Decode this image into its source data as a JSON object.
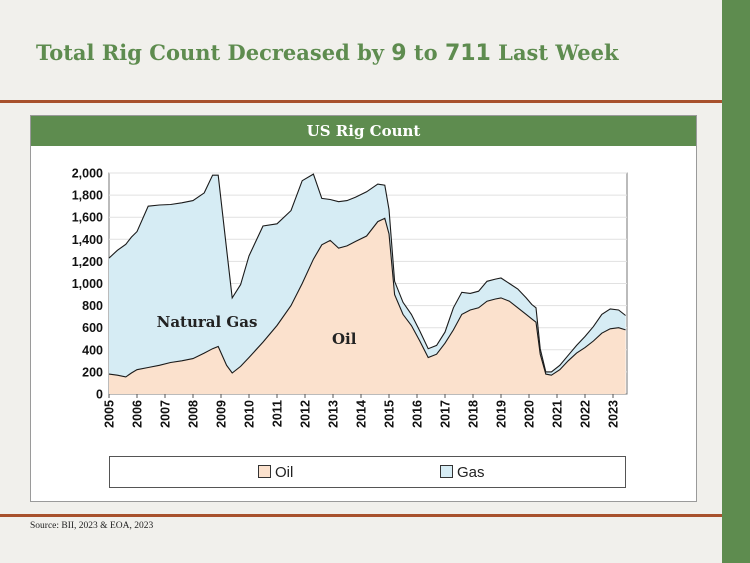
{
  "slide": {
    "title_parts": [
      "Total Rig Count Decreased by ",
      "9",
      " to ",
      "711",
      " Last Week"
    ],
    "source": "Source: BII, 2023 & EOA, 2023"
  },
  "colors": {
    "accent_green": "#5e8c4f",
    "rule_brown": "#a8512d",
    "oil_fill": "#fbe1cd",
    "gas_fill": "#d6ecf4",
    "line": "#1a1a1a"
  },
  "chart_data": {
    "type": "area",
    "title": "US Rig Count",
    "ylim": [
      0,
      2000
    ],
    "yticks": [
      0,
      200,
      400,
      600,
      800,
      1000,
      1200,
      1400,
      1600,
      1800,
      2000
    ],
    "ytick_labels": [
      "0",
      "200",
      "400",
      "600",
      "800",
      "1,000",
      "1,200",
      "1,400",
      "1,600",
      "1,800",
      "2,000"
    ],
    "xlim": [
      2005,
      2023.5
    ],
    "xtick_labels": [
      "2005",
      "2006",
      "2007",
      "2008",
      "2009",
      "2010",
      "2011",
      "2012",
      "2013",
      "2014",
      "2015",
      "2016",
      "2017",
      "2018",
      "2019",
      "2020",
      "2021",
      "2022",
      "2023"
    ],
    "stacked": true,
    "grid": true,
    "legend_position": "bottom",
    "annotations": [
      {
        "text": "Natural Gas",
        "x": 2008.5,
        "y": 650
      },
      {
        "text": "Oil",
        "x": 2013.4,
        "y": 500
      }
    ],
    "series": [
      {
        "name": "Oil",
        "x": [
          2005.0,
          2005.3,
          2005.6,
          2005.8,
          2006.0,
          2006.4,
          2006.8,
          2007.2,
          2007.6,
          2008.0,
          2008.4,
          2008.7,
          2008.9,
          2009.2,
          2009.4,
          2009.7,
          2010.0,
          2010.5,
          2011.0,
          2011.5,
          2011.9,
          2012.3,
          2012.6,
          2012.9,
          2013.2,
          2013.5,
          2013.8,
          2014.2,
          2014.6,
          2014.85,
          2015.0,
          2015.2,
          2015.5,
          2015.8,
          2016.1,
          2016.4,
          2016.7,
          2017.0,
          2017.3,
          2017.6,
          2017.9,
          2018.2,
          2018.5,
          2018.8,
          2019.0,
          2019.3,
          2019.6,
          2019.9,
          2020.1,
          2020.25,
          2020.4,
          2020.6,
          2020.8,
          2021.1,
          2021.4,
          2021.7,
          2022.0,
          2022.3,
          2022.6,
          2022.9,
          2023.2,
          2023.45
        ],
        "values": [
          180,
          170,
          155,
          190,
          220,
          240,
          260,
          285,
          300,
          320,
          370,
          410,
          430,
          260,
          190,
          250,
          330,
          470,
          620,
          800,
          1000,
          1220,
          1350,
          1390,
          1320,
          1340,
          1380,
          1430,
          1560,
          1590,
          1450,
          900,
          720,
          620,
          480,
          330,
          360,
          460,
          580,
          720,
          760,
          780,
          840,
          860,
          870,
          840,
          780,
          720,
          680,
          650,
          360,
          180,
          170,
          220,
          300,
          370,
          420,
          480,
          550,
          590,
          600,
          580
        ]
      },
      {
        "name": "Gas",
        "x": [
          2005.0,
          2005.3,
          2005.6,
          2005.8,
          2006.0,
          2006.4,
          2006.8,
          2007.2,
          2007.6,
          2008.0,
          2008.4,
          2008.7,
          2008.9,
          2009.2,
          2009.4,
          2009.7,
          2010.0,
          2010.5,
          2011.0,
          2011.5,
          2011.9,
          2012.3,
          2012.6,
          2012.9,
          2013.2,
          2013.5,
          2013.8,
          2014.2,
          2014.6,
          2014.85,
          2015.0,
          2015.2,
          2015.5,
          2015.8,
          2016.1,
          2016.4,
          2016.7,
          2017.0,
          2017.3,
          2017.6,
          2017.9,
          2018.2,
          2018.5,
          2018.8,
          2019.0,
          2019.3,
          2019.6,
          2019.9,
          2020.1,
          2020.25,
          2020.4,
          2020.6,
          2020.8,
          2021.1,
          2021.4,
          2021.7,
          2022.0,
          2022.3,
          2022.6,
          2022.9,
          2023.2,
          2023.45
        ],
        "values": [
          1050,
          1130,
          1200,
          1230,
          1250,
          1460,
          1450,
          1430,
          1430,
          1430,
          1450,
          1570,
          1550,
          1050,
          680,
          740,
          920,
          1050,
          920,
          860,
          930,
          770,
          420,
          370,
          420,
          410,
          400,
          400,
          340,
          300,
          220,
          120,
          110,
          100,
          90,
          80,
          80,
          100,
          200,
          200,
          150,
          150,
          180,
          180,
          180,
          160,
          170,
          150,
          130,
          130,
          50,
          20,
          30,
          40,
          50,
          70,
          100,
          130,
          170,
          180,
          160,
          130
        ]
      }
    ]
  }
}
